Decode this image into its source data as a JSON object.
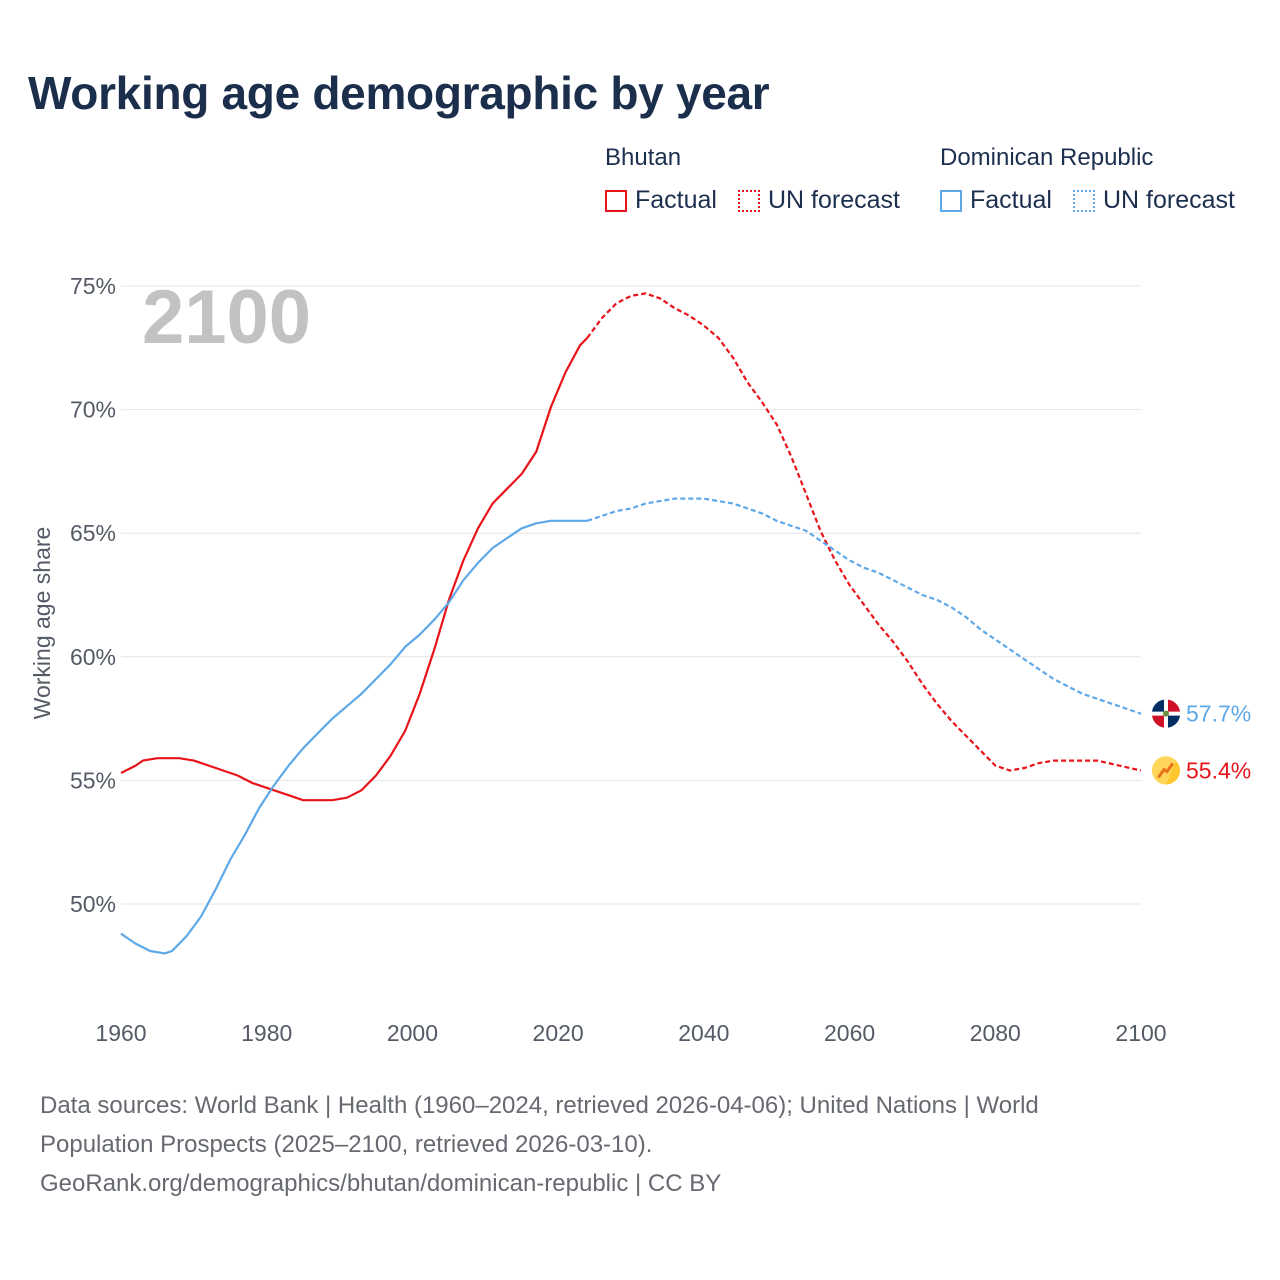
{
  "title": "Working age demographic by year",
  "legend": {
    "groups": [
      {
        "name": "Bhutan",
        "color": "#e8141a",
        "factual_label": "Factual",
        "forecast_label": "UN forecast"
      },
      {
        "name": "Dominican Republic",
        "color": "#5ea8e8",
        "factual_label": "Factual",
        "forecast_label": "UN forecast"
      }
    ]
  },
  "footer": {
    "sources_line1": "Data sources: World Bank | Health (1960–2024, retrieved 2026-04-06); United Nations | World",
    "sources_line2": "Population Prospects (2025–2100, retrieved 2026-03-10).",
    "attribution": "GeoRank.org/demographics/bhutan/dominican-republic | CC BY"
  },
  "chart_data": {
    "type": "line",
    "title": "Working age demographic by year",
    "ylabel": "Working age share",
    "xlabel": "",
    "year_overlay": "2100",
    "xlim": [
      1960,
      2100
    ],
    "ylim": [
      46,
      76
    ],
    "x_ticks": [
      1960,
      1980,
      2000,
      2020,
      2040,
      2060,
      2080,
      2100
    ],
    "x_tick_labels": [
      "1960",
      "1980",
      "2000",
      "2020",
      "2040",
      "2060",
      "2080",
      "2100"
    ],
    "y_ticks": [
      50,
      55,
      60,
      65,
      70,
      75
    ],
    "y_tick_labels": [
      "50%",
      "55%",
      "60%",
      "65%",
      "70%",
      "75%"
    ],
    "forecast_start": 2024,
    "series": [
      {
        "name": "Bhutan",
        "color": "#e8141a",
        "end_label": "55.4%",
        "points": [
          [
            1960,
            55.3
          ],
          [
            1962,
            55.6
          ],
          [
            1963,
            55.8
          ],
          [
            1965,
            55.9
          ],
          [
            1968,
            55.9
          ],
          [
            1970,
            55.8
          ],
          [
            1973,
            55.5
          ],
          [
            1976,
            55.2
          ],
          [
            1978,
            54.9
          ],
          [
            1981,
            54.6
          ],
          [
            1983,
            54.4
          ],
          [
            1985,
            54.2
          ],
          [
            1987,
            54.2
          ],
          [
            1989,
            54.2
          ],
          [
            1991,
            54.3
          ],
          [
            1993,
            54.6
          ],
          [
            1995,
            55.2
          ],
          [
            1997,
            56.0
          ],
          [
            1999,
            57.0
          ],
          [
            2001,
            58.5
          ],
          [
            2003,
            60.3
          ],
          [
            2005,
            62.3
          ],
          [
            2007,
            63.9
          ],
          [
            2009,
            65.2
          ],
          [
            2011,
            66.2
          ],
          [
            2013,
            66.8
          ],
          [
            2015,
            67.4
          ],
          [
            2017,
            68.3
          ],
          [
            2019,
            70.1
          ],
          [
            2021,
            71.5
          ],
          [
            2023,
            72.6
          ],
          [
            2024,
            72.9
          ],
          [
            2026,
            73.7
          ],
          [
            2028,
            74.3
          ],
          [
            2030,
            74.6
          ],
          [
            2032,
            74.7
          ],
          [
            2034,
            74.5
          ],
          [
            2036,
            74.1
          ],
          [
            2038,
            73.8
          ],
          [
            2040,
            73.4
          ],
          [
            2042,
            72.9
          ],
          [
            2044,
            72.1
          ],
          [
            2046,
            71.1
          ],
          [
            2048,
            70.3
          ],
          [
            2050,
            69.4
          ],
          [
            2052,
            68.1
          ],
          [
            2054,
            66.6
          ],
          [
            2056,
            65.1
          ],
          [
            2058,
            63.9
          ],
          [
            2060,
            62.9
          ],
          [
            2062,
            62.1
          ],
          [
            2064,
            61.3
          ],
          [
            2066,
            60.6
          ],
          [
            2068,
            59.8
          ],
          [
            2070,
            58.9
          ],
          [
            2072,
            58.1
          ],
          [
            2074,
            57.4
          ],
          [
            2076,
            56.8
          ],
          [
            2078,
            56.2
          ],
          [
            2080,
            55.6
          ],
          [
            2082,
            55.4
          ],
          [
            2084,
            55.5
          ],
          [
            2086,
            55.7
          ],
          [
            2088,
            55.8
          ],
          [
            2090,
            55.8
          ],
          [
            2094,
            55.8
          ],
          [
            2097,
            55.6
          ],
          [
            2100,
            55.4
          ]
        ]
      },
      {
        "name": "Dominican Republic",
        "color": "#5ea8e8",
        "end_label": "57.7%",
        "points": [
          [
            1960,
            48.8
          ],
          [
            1962,
            48.4
          ],
          [
            1964,
            48.1
          ],
          [
            1966,
            48.0
          ],
          [
            1967,
            48.1
          ],
          [
            1969,
            48.7
          ],
          [
            1971,
            49.5
          ],
          [
            1973,
            50.6
          ],
          [
            1975,
            51.8
          ],
          [
            1977,
            52.8
          ],
          [
            1979,
            53.9
          ],
          [
            1981,
            54.8
          ],
          [
            1983,
            55.6
          ],
          [
            1985,
            56.3
          ],
          [
            1987,
            56.9
          ],
          [
            1989,
            57.5
          ],
          [
            1991,
            58.0
          ],
          [
            1993,
            58.5
          ],
          [
            1995,
            59.1
          ],
          [
            1997,
            59.7
          ],
          [
            1999,
            60.4
          ],
          [
            2001,
            60.9
          ],
          [
            2003,
            61.5
          ],
          [
            2005,
            62.2
          ],
          [
            2007,
            63.1
          ],
          [
            2009,
            63.8
          ],
          [
            2011,
            64.4
          ],
          [
            2013,
            64.8
          ],
          [
            2015,
            65.2
          ],
          [
            2017,
            65.4
          ],
          [
            2019,
            65.5
          ],
          [
            2021,
            65.5
          ],
          [
            2024,
            65.5
          ],
          [
            2026,
            65.7
          ],
          [
            2028,
            65.9
          ],
          [
            2030,
            66.0
          ],
          [
            2032,
            66.2
          ],
          [
            2034,
            66.3
          ],
          [
            2036,
            66.4
          ],
          [
            2038,
            66.4
          ],
          [
            2040,
            66.4
          ],
          [
            2042,
            66.3
          ],
          [
            2044,
            66.2
          ],
          [
            2046,
            66.0
          ],
          [
            2048,
            65.8
          ],
          [
            2050,
            65.5
          ],
          [
            2052,
            65.3
          ],
          [
            2054,
            65.1
          ],
          [
            2056,
            64.7
          ],
          [
            2058,
            64.3
          ],
          [
            2060,
            63.9
          ],
          [
            2062,
            63.6
          ],
          [
            2064,
            63.4
          ],
          [
            2066,
            63.1
          ],
          [
            2068,
            62.8
          ],
          [
            2070,
            62.5
          ],
          [
            2072,
            62.3
          ],
          [
            2074,
            62.0
          ],
          [
            2076,
            61.6
          ],
          [
            2078,
            61.1
          ],
          [
            2080,
            60.7
          ],
          [
            2082,
            60.3
          ],
          [
            2084,
            59.9
          ],
          [
            2086,
            59.5
          ],
          [
            2088,
            59.1
          ],
          [
            2090,
            58.8
          ],
          [
            2092,
            58.5
          ],
          [
            2094,
            58.3
          ],
          [
            2096,
            58.1
          ],
          [
            2098,
            57.9
          ],
          [
            2100,
            57.7
          ]
        ]
      }
    ]
  }
}
